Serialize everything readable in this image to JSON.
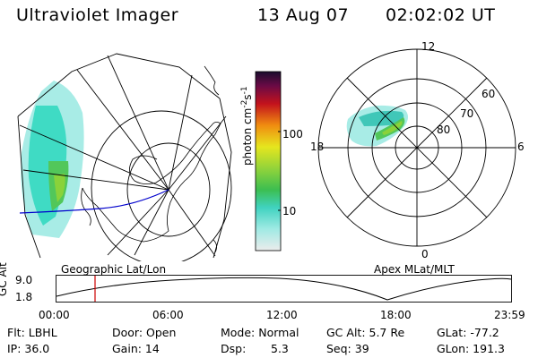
{
  "header": {
    "title": "Ultraviolet Imager",
    "date": "13 Aug 07",
    "time": "02:02:02 UT"
  },
  "colorbar": {
    "label": "photon cm",
    "label_sup1": "-2",
    "label_mid": "s",
    "label_sup2": "-1",
    "ticks": [
      "100",
      "10"
    ]
  },
  "polar_plot": {
    "label": "Apex MLat/MLT",
    "lat_labels": [
      "80",
      "70",
      "60"
    ],
    "mlt_labels": [
      "12",
      "18",
      "6",
      "0"
    ]
  },
  "geo_plot": {
    "label": "Geographic Lat/Lon"
  },
  "timeline": {
    "ylabel": "GC Alt",
    "yticks": [
      "9.0",
      "1.8"
    ],
    "xticks": [
      "00:00",
      "06:00",
      "12:00",
      "18:00",
      "23:59"
    ],
    "current_time_fraction": 0.0848
  },
  "info": {
    "flt": "Flt: LBHL",
    "ip": "IP: 36.0",
    "door": "Door: Open",
    "gain": "Gain: 14",
    "mode": "Mode: Normal",
    "dsp_label": "Dsp:",
    "dsp_value": "5.3",
    "gcalt": "GC Alt: 5.7 Re",
    "seq": "Seq: 39",
    "glat": "GLat: -77.2",
    "glon": "GLon: 191.3"
  },
  "colors": {
    "line": "#000000",
    "marker": "#cc0000",
    "track": "#0000cc"
  }
}
